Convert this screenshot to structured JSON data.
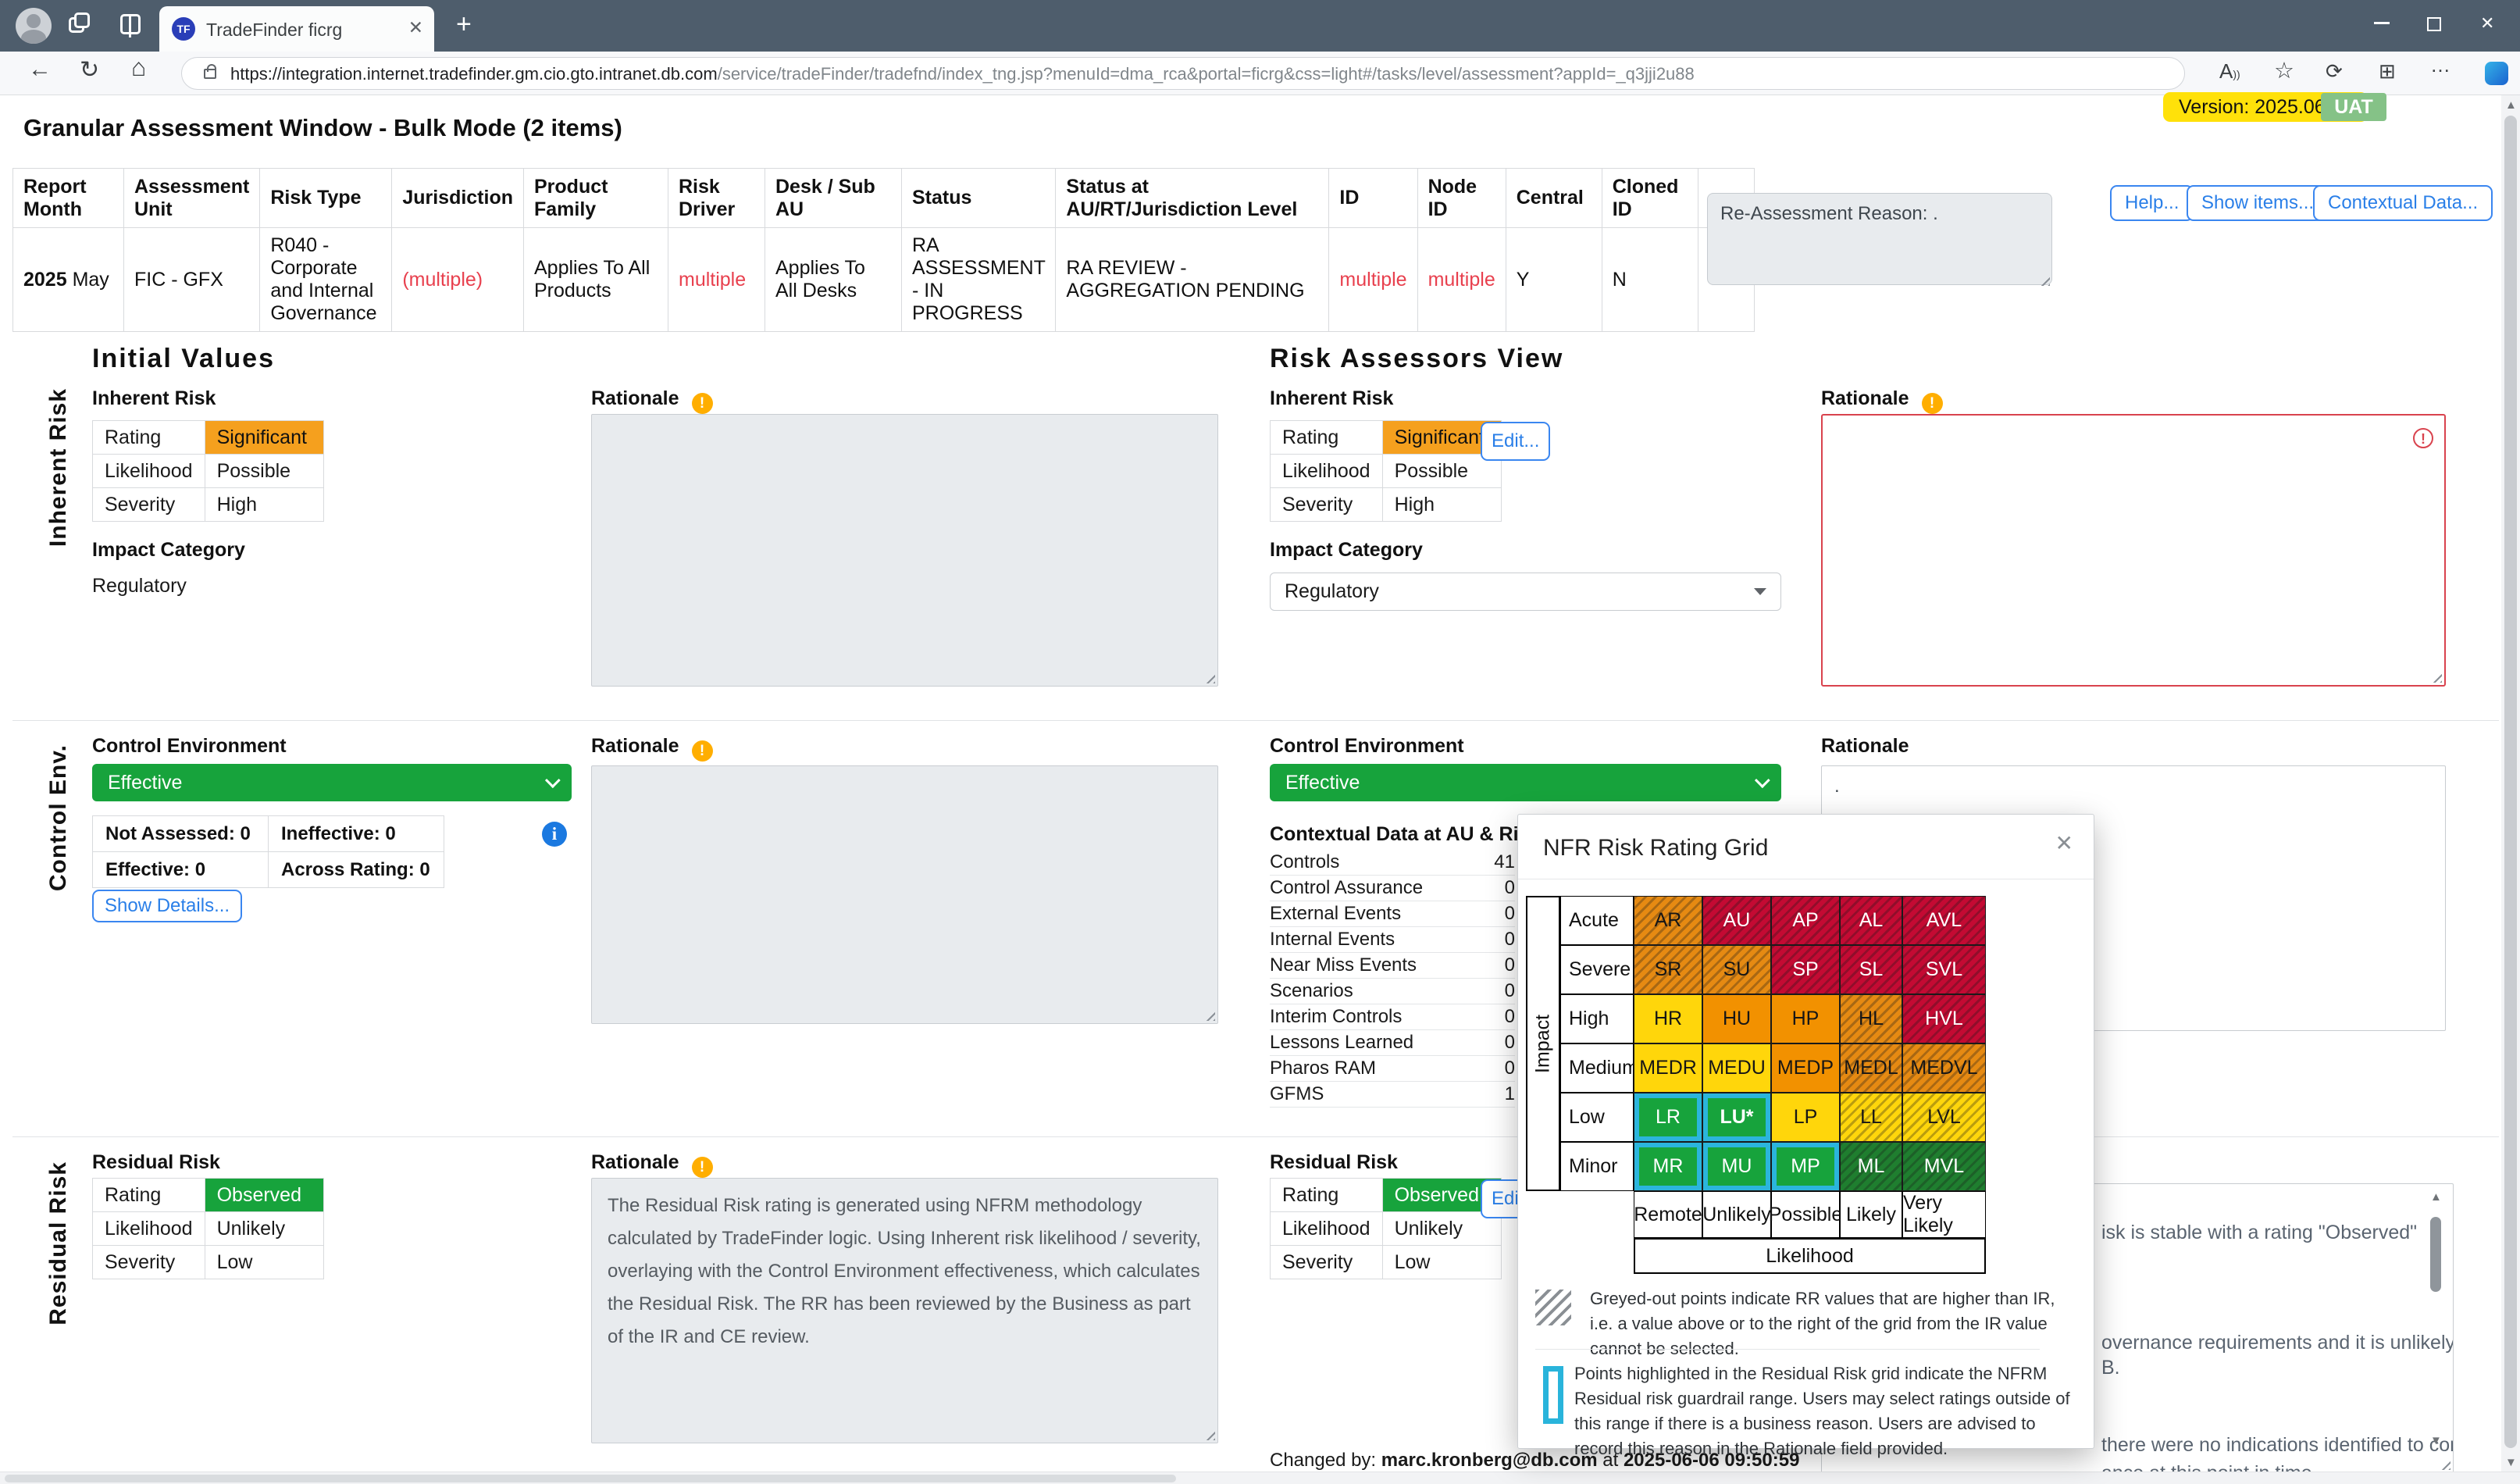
{
  "browser": {
    "tab_title": "TradeFinder ficrg",
    "url_origin": "https://integration.internet.tradefinder.gm.cio.gto.intranet.db.com",
    "url_path": "/service/tradeFinder/tradefnd/index_tng.jsp?menuId=dma_rca&portal=ficrg&css=light#/tasks/level/assessment?appId=_q3jji2u88"
  },
  "page": {
    "title": "Granular Assessment Window - Bulk Mode (2 items)",
    "version_badge": "Version: 2025.06.06",
    "env_badge": "UAT"
  },
  "toolbar_buttons": {
    "help": "Help...",
    "show_items": "Show items...",
    "contextual_data": "Contextual Data..."
  },
  "reassessment": {
    "text": "Re-Assessment Reason: ."
  },
  "summary_table": {
    "columns": [
      "Report Month",
      "Assessment Unit",
      "Risk Type",
      "Jurisdiction",
      "Product Family",
      "Risk Driver",
      "Desk / Sub AU",
      "Status",
      "Status at AU/RT/Jurisdiction Level",
      "ID",
      "Node ID",
      "Central",
      "Cloned ID",
      ""
    ],
    "row": [
      {
        "prefix_bold": "2025",
        "text": " May"
      },
      {
        "text": "FIC - GFX"
      },
      {
        "text": "R040 - Corporate and Internal Governance"
      },
      {
        "text": "(multiple)",
        "style": "red"
      },
      {
        "text": "Applies To All Products"
      },
      {
        "text": "multiple",
        "style": "red"
      },
      {
        "text": "Applies To All Desks"
      },
      {
        "text": "RA ASSESSMENT - IN PROGRESS"
      },
      {
        "text": "RA REVIEW - AGGREGATION PENDING"
      },
      {
        "text": "multiple",
        "style": "red"
      },
      {
        "text": "multiple",
        "style": "red"
      },
      {
        "text": "Y"
      },
      {
        "text": "N"
      },
      {
        "icon": "info-button"
      }
    ]
  },
  "initial_values": {
    "band_label": "Inherent Risk",
    "heading": "Initial Values",
    "inherent_risk_label": "Inherent Risk",
    "ir_rows": [
      [
        "Rating",
        "Significant",
        {
          "bg": "#F5A01E",
          "fg": "#111111"
        }
      ],
      [
        "Likelihood",
        "Possible",
        null
      ],
      [
        "Severity",
        "High",
        null
      ]
    ],
    "impact_category_label": "Impact Category",
    "impact_category_value": "Regulatory",
    "rationale_label": "Rationale"
  },
  "risk_assessors": {
    "heading": "Risk Assessors View",
    "inherent_risk_label": "Inherent Risk",
    "edit_button": "Edit...",
    "impact_category_label": "Impact Category",
    "impact_category_value": "Regulatory",
    "rationale_label": "Rationale"
  },
  "control_env": {
    "band_label": "Control Env.",
    "heading": "Control Environment",
    "dropdown_value": "Effective",
    "stats": [
      [
        "Not Assessed: 0",
        "Ineffective: 0"
      ],
      [
        "Effective: 0",
        "Across Rating: 0"
      ]
    ],
    "show_details_button": "Show Details...",
    "rationale_label": "Rationale",
    "right_heading": "Control Environment",
    "right_dropdown_value": "Effective",
    "contextual_heading": "Contextual Data at AU & Risk Type",
    "contextual_rows": [
      [
        "Controls",
        "41"
      ],
      [
        "Control Assurance",
        "0"
      ],
      [
        "External Events",
        "0"
      ],
      [
        "Internal Events",
        "0"
      ],
      [
        "Near Miss Events",
        "0"
      ],
      [
        "Scenarios",
        "0"
      ],
      [
        "Interim Controls",
        "0"
      ],
      [
        "Lessons Learned",
        "0"
      ],
      [
        "Pharos RAM",
        "0"
      ],
      [
        "GFMS",
        "1"
      ]
    ],
    "right_rationale_text": "."
  },
  "residual": {
    "band_label": "Residual Risk",
    "heading": "Residual Risk",
    "rr_rows": [
      [
        "Rating",
        "Observed",
        {
          "bg": "#17A33C",
          "fg": "#ffffff"
        }
      ],
      [
        "Likelihood",
        "Unlikely",
        null
      ],
      [
        "Severity",
        "Low",
        null
      ]
    ],
    "rationale_label": "Rationale",
    "rationale_text": "The Residual Risk rating is generated using NFRM methodology calculated by TradeFinder logic. Using Inherent risk likelihood / severity, overlaying with the Control Environment effectiveness, which calculates the Residual Risk.  The RR has been reviewed by the Business as part of the IR and CE review.",
    "right_heading": "Residual Risk",
    "edit_button": "Edit...",
    "right_rationale_fragments": [
      "isk is stable with a rating \"Observed\"",
      "overnance requirements and it is unlikely that a",
      "B.",
      "there were no indications identified to come to",
      "ance at this point in time"
    ]
  },
  "modal": {
    "title": "NFR Risk Rating Grid",
    "impact_axis": "Impact",
    "likelihood_axis": "Likelihood",
    "impact_levels": [
      "Acute",
      "Severe",
      "High",
      "Medium",
      "Low",
      "Minor"
    ],
    "likelihood_levels": [
      "Remote",
      "Unlikely",
      "Possible",
      "Likely",
      "Very Likely"
    ],
    "cells": [
      [
        {
          "code": "AR",
          "fill": "orange",
          "hatched": true
        },
        {
          "code": "AU",
          "fill": "red",
          "hatched": true
        },
        {
          "code": "AP",
          "fill": "red",
          "hatched": true
        },
        {
          "code": "AL",
          "fill": "red",
          "hatched": true
        },
        {
          "code": "AVL",
          "fill": "red",
          "hatched": true
        }
      ],
      [
        {
          "code": "SR",
          "fill": "orange",
          "hatched": true
        },
        {
          "code": "SU",
          "fill": "orange",
          "hatched": true
        },
        {
          "code": "SP",
          "fill": "red",
          "hatched": true
        },
        {
          "code": "SL",
          "fill": "red",
          "hatched": true
        },
        {
          "code": "SVL",
          "fill": "red",
          "hatched": true
        }
      ],
      [
        {
          "code": "HR",
          "fill": "yellow"
        },
        {
          "code": "HU",
          "fill": "orange_solid"
        },
        {
          "code": "HP",
          "fill": "orange_solid"
        },
        {
          "code": "HL",
          "fill": "orange",
          "hatched": true
        },
        {
          "code": "HVL",
          "fill": "red",
          "hatched": true
        }
      ],
      [
        {
          "code": "MEDR",
          "fill": "yellow"
        },
        {
          "code": "MEDU",
          "fill": "yellow"
        },
        {
          "code": "MEDP",
          "fill": "orange_solid"
        },
        {
          "code": "MEDL",
          "fill": "orange",
          "hatched": true
        },
        {
          "code": "MEDVL",
          "fill": "orange",
          "hatched": true
        }
      ],
      [
        {
          "code": "LR",
          "fill": "green",
          "guardrail": true
        },
        {
          "code": "LU*",
          "fill": "green",
          "guardrail": true,
          "bold": true
        },
        {
          "code": "LP",
          "fill": "yellow"
        },
        {
          "code": "LL",
          "fill": "yellow",
          "hatched": true
        },
        {
          "code": "LVL",
          "fill": "yellow",
          "hatched": true
        }
      ],
      [
        {
          "code": "MR",
          "fill": "green",
          "guardrail": true
        },
        {
          "code": "MU",
          "fill": "green",
          "guardrail": true
        },
        {
          "code": "MP",
          "fill": "green",
          "guardrail": true
        },
        {
          "code": "ML",
          "fill": "dark_green",
          "hatched": true
        },
        {
          "code": "MVL",
          "fill": "dark_green",
          "hatched": true
        }
      ]
    ],
    "colors": {
      "red": "#C40A33",
      "orange": "#E68A12",
      "orange_solid": "#F29100",
      "yellow": "#FFD60B",
      "green": "#17A33C",
      "dark_green": "#1F7E2F",
      "guardrail": "#2BB5DC",
      "significant": "#F5A01E"
    },
    "legend": [
      {
        "swatch": "hatched",
        "text": "Greyed-out points indicate RR values that are higher than IR, i.e. a value above or to the right of the grid from the IR value cannot be selected."
      },
      {
        "swatch": "guardrail",
        "text": "Points highlighted in the Residual Risk grid indicate the NFRM Residual risk guardrail range. Users may select ratings outside of this range if there is a business reason. Users are advised to record this reason in the Rationale field provided."
      }
    ]
  },
  "footer": {
    "changed_by_label": "Changed by:",
    "user": "marc.kronberg@db.com",
    "at_label": "at",
    "timestamp": "2025-06-06 09:50:59"
  }
}
